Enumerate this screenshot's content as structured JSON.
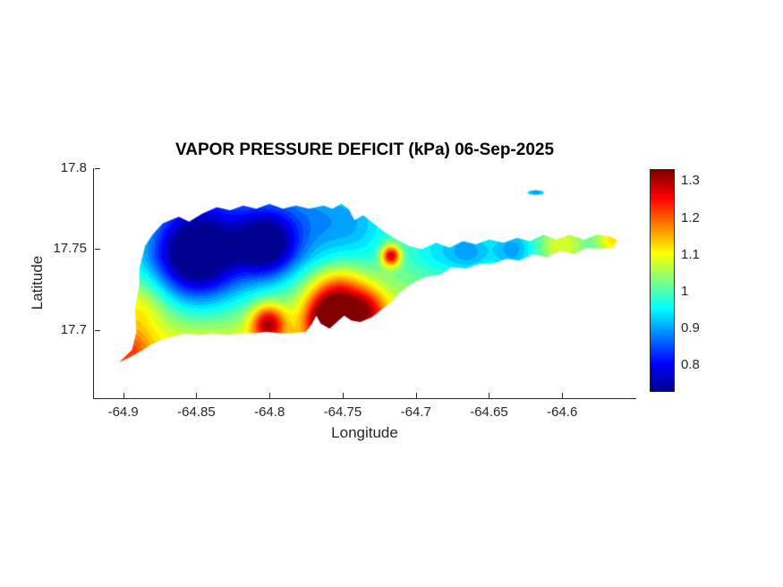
{
  "title": "VAPOR PRESSURE DEFICIT (kPa) 06-Sep-2025",
  "chart_data": {
    "type": "heatmap",
    "title": "VAPOR PRESSURE DEFICIT (kPa) 06-Sep-2025",
    "variable": "VAPOR PRESSURE DEFICIT",
    "units": "kPa",
    "date": "06-Sep-2025",
    "xlabel": "Longitude",
    "ylabel": "Latitude",
    "xlim": [
      -64.92,
      -64.55
    ],
    "ylim": [
      17.658,
      17.8
    ],
    "grid": false,
    "x_axis": {
      "tick_values": [
        -64.9,
        -64.85,
        -64.8,
        -64.75,
        -64.7,
        -64.65,
        -64.6
      ],
      "tick_labels": [
        "-64.9",
        "-64.85",
        "-64.8",
        "-64.75",
        "-64.7",
        "-64.65",
        "-64.6"
      ]
    },
    "y_axis": {
      "tick_values": [
        17.7,
        17.75,
        17.8
      ],
      "tick_labels": [
        "17.7",
        "17.75",
        "17.8"
      ]
    },
    "colorbar": {
      "position": "right",
      "colormap": "jet",
      "range": [
        0.73,
        1.33
      ],
      "tick_values": [
        0.8,
        0.9,
        1,
        1.1,
        1.2,
        1.3
      ],
      "tick_labels": [
        "0.8",
        "0.9",
        "1",
        "1.1",
        "1.2",
        "1.3"
      ]
    },
    "colormap_stops": [
      [
        0,
        0,
        0,
        143
      ],
      [
        0.125,
        0,
        0,
        255
      ],
      [
        0.375,
        0,
        255,
        255
      ],
      [
        0.625,
        255,
        255,
        0
      ],
      [
        0.875,
        255,
        0,
        0
      ],
      [
        1,
        128,
        0,
        0
      ]
    ],
    "colors": {
      "background": "#ffffff",
      "axes_text": "#262626",
      "title_text": "#000000"
    },
    "island_outline": [
      [
        -64.903,
        17.68
      ],
      [
        -64.894,
        17.688
      ],
      [
        -64.891,
        17.699
      ],
      [
        -64.892,
        17.713
      ],
      [
        -64.889,
        17.728
      ],
      [
        -64.889,
        17.738
      ],
      [
        -64.885,
        17.752
      ],
      [
        -64.88,
        17.759
      ],
      [
        -64.873,
        17.766
      ],
      [
        -64.862,
        17.77
      ],
      [
        -64.855,
        17.767
      ],
      [
        -64.846,
        17.772
      ],
      [
        -64.836,
        17.776
      ],
      [
        -64.827,
        17.774
      ],
      [
        -64.818,
        17.777
      ],
      [
        -64.809,
        17.775
      ],
      [
        -64.8,
        17.778
      ],
      [
        -64.791,
        17.775
      ],
      [
        -64.782,
        17.777
      ],
      [
        -64.773,
        17.775
      ],
      [
        -64.763,
        17.777
      ],
      [
        -64.757,
        17.775
      ],
      [
        -64.751,
        17.778
      ],
      [
        -64.746,
        17.775
      ],
      [
        -64.742,
        17.768
      ],
      [
        -64.736,
        17.771
      ],
      [
        -64.729,
        17.766
      ],
      [
        -64.722,
        17.761
      ],
      [
        -64.713,
        17.756
      ],
      [
        -64.705,
        17.752
      ],
      [
        -64.696,
        17.75
      ],
      [
        -64.686,
        17.754
      ],
      [
        -64.677,
        17.751
      ],
      [
        -64.668,
        17.755
      ],
      [
        -64.659,
        17.753
      ],
      [
        -64.65,
        17.756
      ],
      [
        -64.64,
        17.754
      ],
      [
        -64.631,
        17.757
      ],
      [
        -64.622,
        17.755
      ],
      [
        -64.613,
        17.759
      ],
      [
        -64.604,
        17.756
      ],
      [
        -64.595,
        17.759
      ],
      [
        -64.585,
        17.756
      ],
      [
        -64.576,
        17.759
      ],
      [
        -64.568,
        17.758
      ],
      [
        -64.562,
        17.756
      ],
      [
        -64.565,
        17.751
      ],
      [
        -64.574,
        17.75
      ],
      [
        -64.583,
        17.751
      ],
      [
        -64.592,
        17.747
      ],
      [
        -64.601,
        17.749
      ],
      [
        -64.611,
        17.745
      ],
      [
        -64.62,
        17.747
      ],
      [
        -64.629,
        17.743
      ],
      [
        -64.638,
        17.744
      ],
      [
        -64.647,
        17.741
      ],
      [
        -64.656,
        17.741
      ],
      [
        -64.666,
        17.738
      ],
      [
        -64.675,
        17.739
      ],
      [
        -64.684,
        17.734
      ],
      [
        -64.693,
        17.733
      ],
      [
        -64.702,
        17.729
      ],
      [
        -64.71,
        17.724
      ],
      [
        -64.716,
        17.718
      ],
      [
        -64.723,
        17.713
      ],
      [
        -64.73,
        17.708
      ],
      [
        -64.738,
        17.705
      ],
      [
        -64.744,
        17.706
      ],
      [
        -64.749,
        17.709
      ],
      [
        -64.754,
        17.705
      ],
      [
        -64.759,
        17.701
      ],
      [
        -64.765,
        17.704
      ],
      [
        -64.768,
        17.709
      ],
      [
        -64.771,
        17.704
      ],
      [
        -64.775,
        17.699
      ],
      [
        -64.784,
        17.698
      ],
      [
        -64.793,
        17.698
      ],
      [
        -64.802,
        17.699
      ],
      [
        -64.811,
        17.698
      ],
      [
        -64.82,
        17.698
      ],
      [
        -64.829,
        17.697
      ],
      [
        -64.839,
        17.698
      ],
      [
        -64.848,
        17.697
      ],
      [
        -64.857,
        17.698
      ],
      [
        -64.866,
        17.696
      ],
      [
        -64.874,
        17.694
      ],
      [
        -64.881,
        17.691
      ],
      [
        -64.888,
        17.687
      ],
      [
        -64.896,
        17.683
      ]
    ],
    "islets": [
      [
        [
          -64.612,
          17.785
        ],
        [
          -64.6137,
          17.7861
        ],
        [
          -64.618,
          17.7865
        ],
        [
          -64.6223,
          17.7861
        ],
        [
          -64.624,
          17.785
        ],
        [
          -64.6223,
          17.7839
        ],
        [
          -64.618,
          17.7835
        ],
        [
          -64.6137,
          17.7839
        ]
      ]
    ],
    "field": {
      "base": 1.0,
      "contour_step": 0.02,
      "south_gradient": {
        "lat0": 17.745,
        "k": 2.2
      },
      "features": [
        {
          "lon": -64.851,
          "lat": 17.746,
          "amp": -0.27,
          "sigma": 0.02
        },
        {
          "lon": -64.802,
          "lat": 17.753,
          "amp": -0.23,
          "sigma": 0.014
        },
        {
          "lon": -64.83,
          "lat": 17.757,
          "amp": -0.12,
          "sigma": 0.035
        },
        {
          "lon": -64.77,
          "lat": 17.768,
          "amp": -0.08,
          "sigma": 0.02
        },
        {
          "lon": -64.74,
          "lat": 17.765,
          "amp": -0.06,
          "sigma": 0.015
        },
        {
          "lon": -64.68,
          "lat": 17.75,
          "amp": -0.06,
          "sigma": 0.015
        },
        {
          "lon": -64.662,
          "lat": 17.748,
          "amp": -0.07,
          "sigma": 0.01
        },
        {
          "lon": -64.634,
          "lat": 17.75,
          "amp": -0.1,
          "sigma": 0.01
        },
        {
          "lon": -64.618,
          "lat": 17.785,
          "amp": -0.1,
          "sigma": 0.005
        },
        {
          "lon": -64.753,
          "lat": 17.715,
          "amp": 0.3,
          "sigma": 0.014
        },
        {
          "lon": -64.762,
          "lat": 17.704,
          "amp": 0.18,
          "sigma": 0.009
        },
        {
          "lon": -64.732,
          "lat": 17.712,
          "amp": 0.15,
          "sigma": 0.009
        },
        {
          "lon": -64.801,
          "lat": 17.704,
          "amp": 0.25,
          "sigma": 0.008
        },
        {
          "lon": -64.717,
          "lat": 17.746,
          "amp": 0.3,
          "sigma": 0.0045
        },
        {
          "lon": -64.896,
          "lat": 17.687,
          "amp": 0.1,
          "sigma": 0.01
        },
        {
          "lon": -64.888,
          "lat": 17.715,
          "amp": 0.06,
          "sigma": 0.012
        },
        {
          "lon": -64.6,
          "lat": 17.752,
          "amp": 0.09,
          "sigma": 0.01
        },
        {
          "lon": -64.566,
          "lat": 17.756,
          "amp": 0.12,
          "sigma": 0.007
        }
      ]
    }
  }
}
